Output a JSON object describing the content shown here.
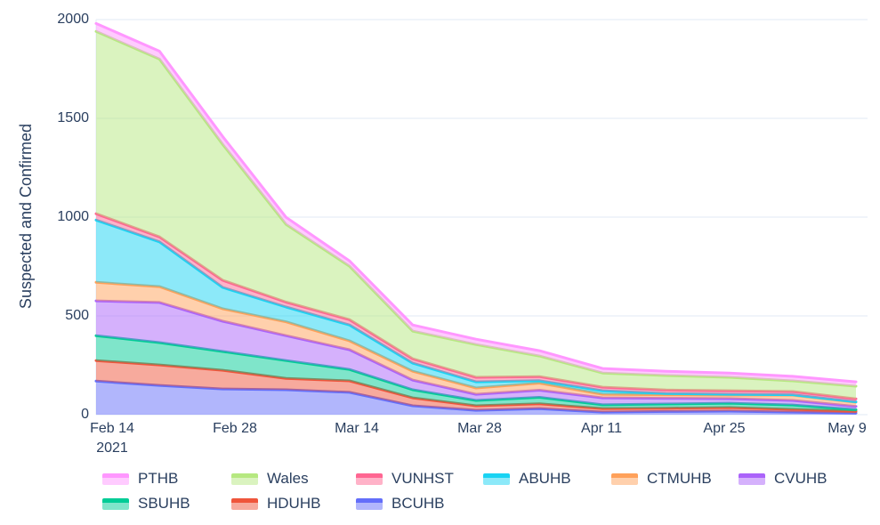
{
  "colors": {
    "text": "#2a3f5f",
    "grid": "#ebf0f8",
    "background": "#ffffff"
  },
  "chart_data": {
    "type": "area",
    "stacked": true,
    "title": "",
    "xlabel": "",
    "ylabel": "Suspected and Confirmed",
    "ylim": [
      0,
      2000
    ],
    "grid": "horizontal",
    "legend_position": "bottom",
    "y_ticks": [
      0,
      500,
      1000,
      1500,
      2000
    ],
    "y_tick_labels": [
      "0",
      "500",
      "1000",
      "1500",
      "2000"
    ],
    "x_tick_labels": [
      "Feb 14",
      "Feb 28",
      "Mar 14",
      "Mar 28",
      "Apr 11",
      "Apr 25",
      "May 9"
    ],
    "x_first_tick_sublabel": "2021",
    "x_dates": [
      "Feb 14",
      "Feb 21",
      "Feb 28",
      "Mar 7",
      "Mar 14",
      "Mar 21",
      "Mar 28",
      "Apr 4",
      "Apr 11",
      "Apr 18",
      "Apr 25",
      "May 2",
      "May 9"
    ],
    "series": [
      {
        "name": "BCUHB",
        "color": "#636EFA",
        "values": [
          170,
          148,
          130,
          126,
          113,
          45,
          22,
          30,
          13,
          16,
          18,
          13,
          8
        ]
      },
      {
        "name": "HDUHB",
        "color": "#EF553B",
        "values": [
          104,
          104,
          95,
          58,
          58,
          40,
          23,
          25,
          18,
          17,
          18,
          14,
          9
        ]
      },
      {
        "name": "SBUHB",
        "color": "#00CC96",
        "values": [
          126,
          113,
          95,
          90,
          58,
          41,
          27,
          33,
          19,
          21,
          22,
          22,
          8
        ]
      },
      {
        "name": "CVUHB",
        "color": "#AB63FA",
        "values": [
          176,
          203,
          153,
          126,
          100,
          49,
          31,
          36,
          35,
          29,
          23,
          23,
          17
        ]
      },
      {
        "name": "CTMUHB",
        "color": "#FFA15A",
        "values": [
          94,
          80,
          63,
          70,
          45,
          45,
          32,
          36,
          18,
          18,
          18,
          27,
          21
        ]
      },
      {
        "name": "ABUHB",
        "color": "#19D3F3",
        "values": [
          315,
          227,
          108,
          75,
          80,
          41,
          31,
          12,
          18,
          6,
          4,
          2,
          2
        ]
      },
      {
        "name": "VUNHST",
        "color": "#FF6692",
        "values": [
          32,
          25,
          36,
          25,
          27,
          22,
          23,
          21,
          18,
          18,
          18,
          16,
          15
        ]
      },
      {
        "name": "Wales",
        "color": "#B6E880",
        "values": [
          923,
          900,
          688,
          393,
          271,
          140,
          166,
          104,
          72,
          73,
          68,
          54,
          64
        ]
      },
      {
        "name": "PTHB",
        "color": "#FF97FF",
        "values": [
          40,
          40,
          40,
          36,
          27,
          31,
          27,
          27,
          23,
          22,
          22,
          23,
          22
        ]
      }
    ]
  },
  "legend": {
    "items": [
      {
        "label": "PTHB",
        "color": "#FF97FF"
      },
      {
        "label": "Wales",
        "color": "#B6E880"
      },
      {
        "label": "VUNHST",
        "color": "#FF6692"
      },
      {
        "label": "ABUHB",
        "color": "#19D3F3"
      },
      {
        "label": "CTMUHB",
        "color": "#FFA15A"
      },
      {
        "label": "CVUHB",
        "color": "#AB63FA"
      },
      {
        "label": "SBUHB",
        "color": "#00CC96"
      },
      {
        "label": "HDUHB",
        "color": "#EF553B"
      },
      {
        "label": "BCUHB",
        "color": "#636EFA"
      }
    ]
  }
}
